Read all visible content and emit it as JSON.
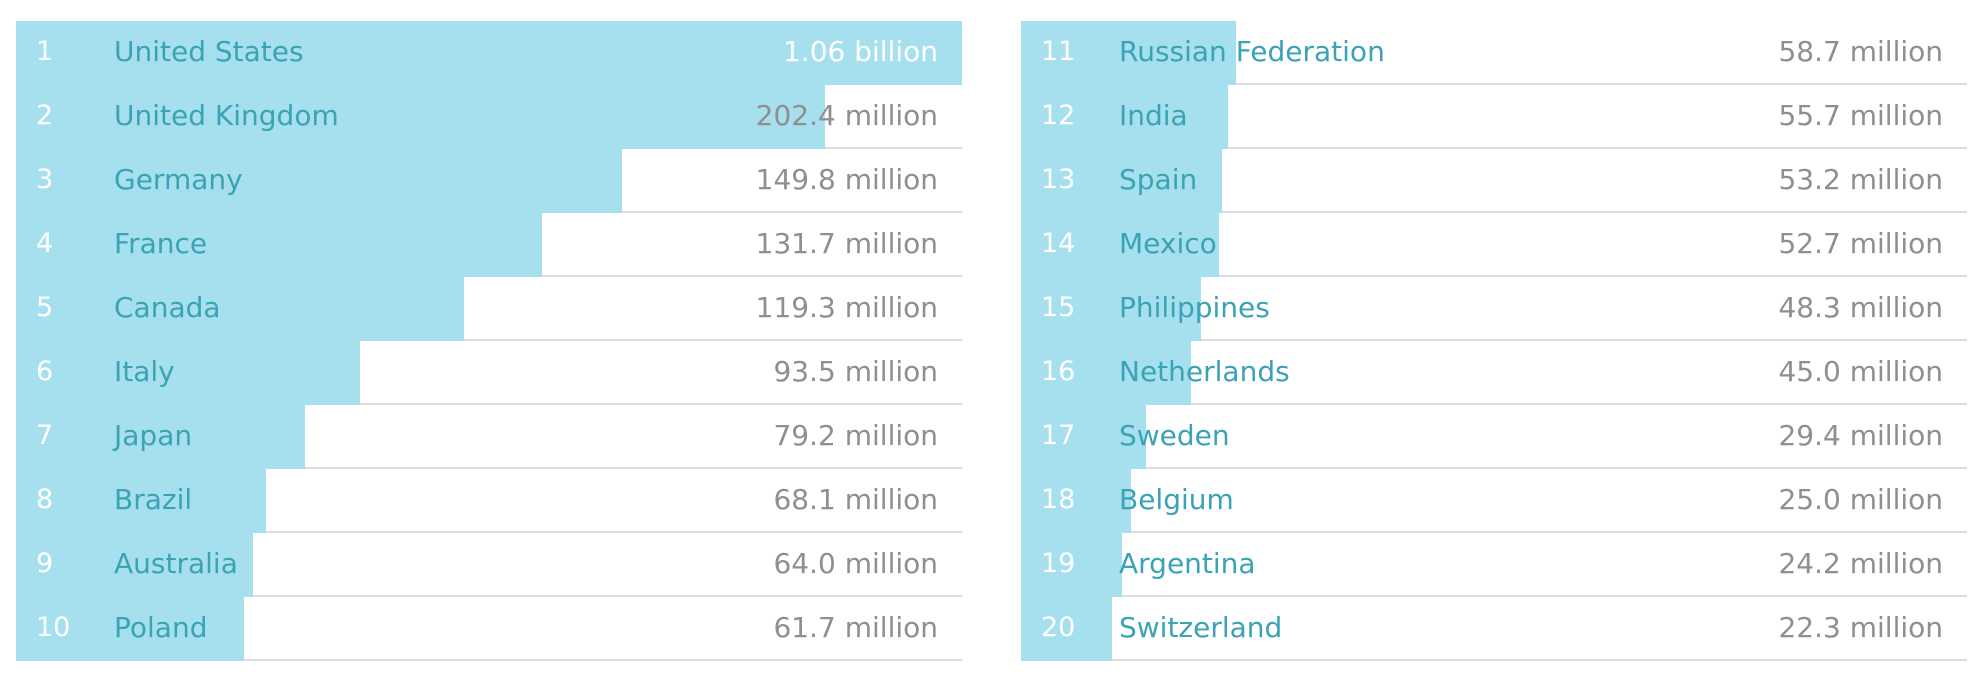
{
  "chart_data": {
    "type": "bar",
    "colors": {
      "bar": "#a6e0ee",
      "name_text": "#3aa3b5",
      "value_text": "#8f8f8f",
      "rank_text": "#ffffff",
      "divider": "#dcdde3"
    },
    "max_value": 1060,
    "unit_scale": "million",
    "panels": [
      {
        "rows": [
          {
            "rank": "1",
            "name": "United States",
            "label": "1.06 billion",
            "value": 1060
          },
          {
            "rank": "2",
            "name": "United Kingdom",
            "label": "202.4 million",
            "value": 202.4
          },
          {
            "rank": "3",
            "name": "Germany",
            "label": "149.8 million",
            "value": 149.8
          },
          {
            "rank": "4",
            "name": "France",
            "label": "131.7 million",
            "value": 131.7
          },
          {
            "rank": "5",
            "name": "Canada",
            "label": "119.3 million",
            "value": 119.3
          },
          {
            "rank": "6",
            "name": "Italy",
            "label": "93.5 million",
            "value": 93.5
          },
          {
            "rank": "7",
            "name": "Japan",
            "label": "79.2 million",
            "value": 79.2
          },
          {
            "rank": "8",
            "name": "Brazil",
            "label": "68.1 million",
            "value": 68.1
          },
          {
            "rank": "9",
            "name": "Australia",
            "label": "64.0 million",
            "value": 64.0
          },
          {
            "rank": "10",
            "name": "Poland",
            "label": "61.7 million",
            "value": 61.7
          }
        ]
      },
      {
        "rows": [
          {
            "rank": "11",
            "name": "Russian Federation",
            "label": "58.7 million",
            "value": 58.7
          },
          {
            "rank": "12",
            "name": "India",
            "label": "55.7 million",
            "value": 55.7
          },
          {
            "rank": "13",
            "name": "Spain",
            "label": "53.2 million",
            "value": 53.2
          },
          {
            "rank": "14",
            "name": "Mexico",
            "label": "52.7 million",
            "value": 52.7
          },
          {
            "rank": "15",
            "name": "Philippines",
            "label": "48.3 million",
            "value": 48.3
          },
          {
            "rank": "16",
            "name": "Netherlands",
            "label": "45.0 million",
            "value": 45.0
          },
          {
            "rank": "17",
            "name": "Sweden",
            "label": "29.4 million",
            "value": 29.4
          },
          {
            "rank": "18",
            "name": "Belgium",
            "label": "25.0 million",
            "value": 25.0
          },
          {
            "rank": "19",
            "name": "Argentina",
            "label": "24.2 million",
            "value": 24.2
          },
          {
            "rank": "20",
            "name": "Switzerland",
            "label": "22.3 million",
            "value": 22.3
          }
        ]
      }
    ]
  }
}
